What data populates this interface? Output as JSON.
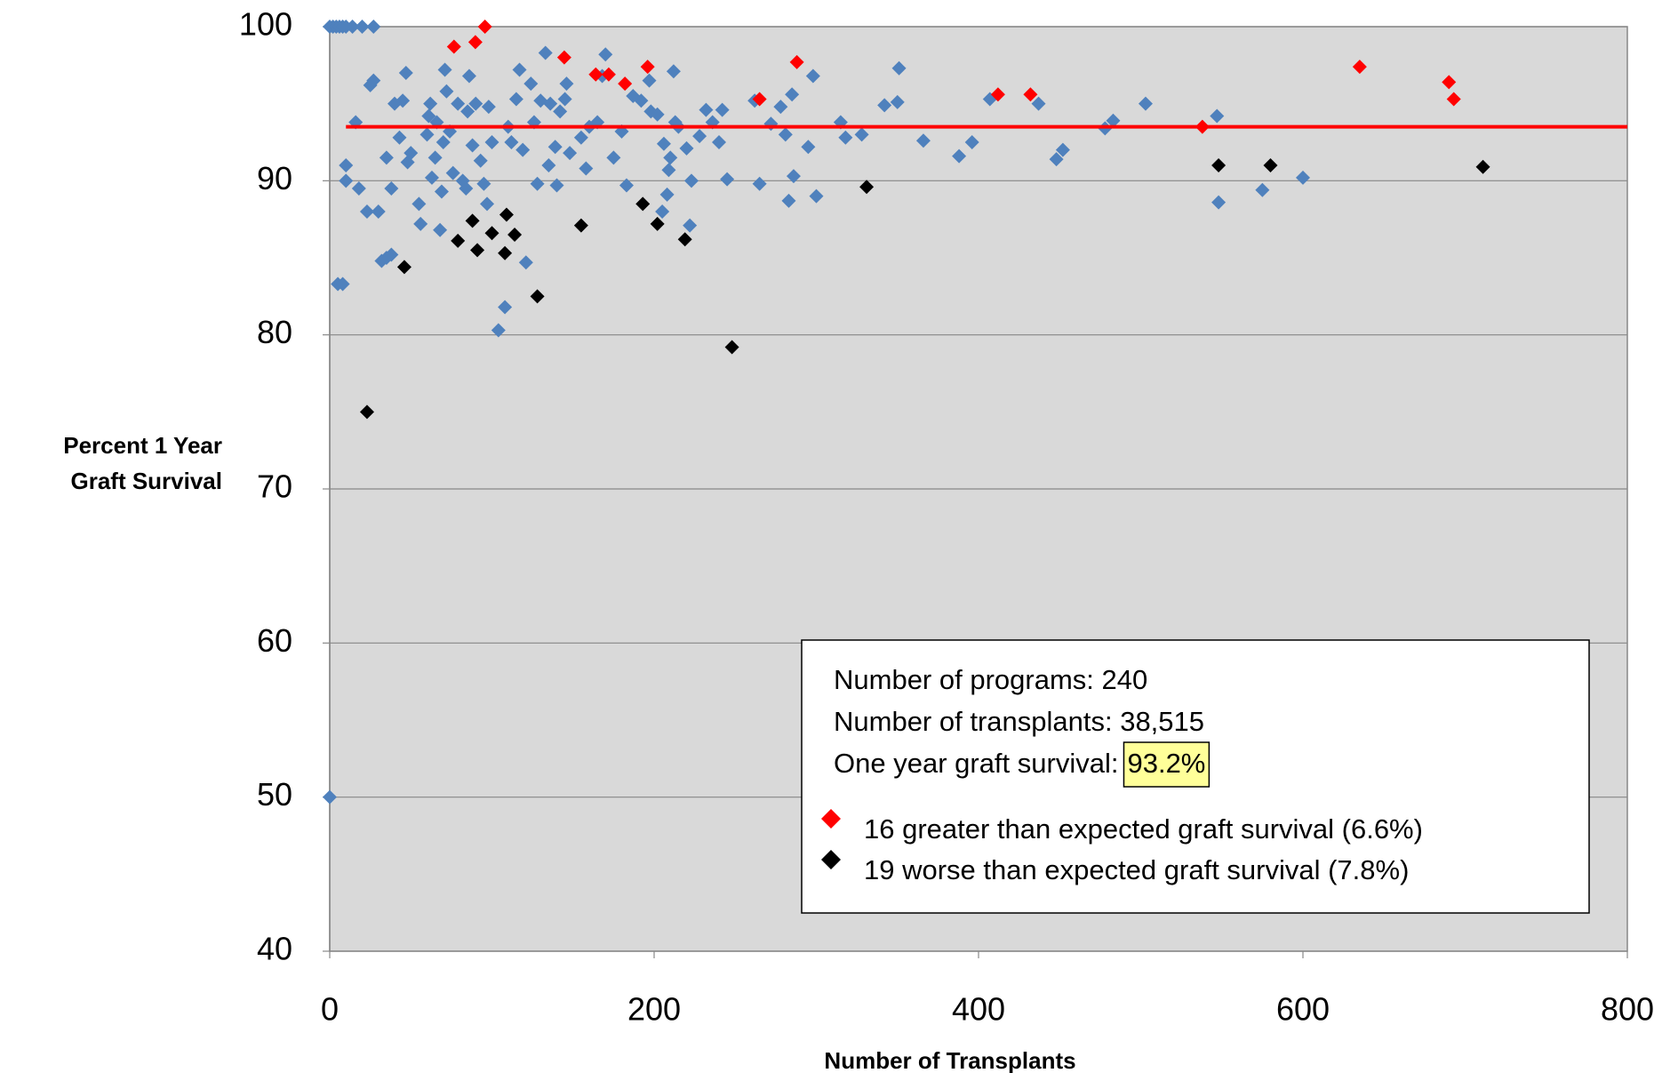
{
  "chart_data": {
    "type": "scatter",
    "xlabel": "Number of Transplants",
    "ylabel": [
      "Percent 1 Year",
      "Graft Survival"
    ],
    "xlim": [
      0,
      800
    ],
    "xticks": [
      0,
      200,
      400,
      600,
      800
    ],
    "ylim": [
      40,
      100
    ],
    "yticks": [
      40,
      50,
      60,
      70,
      80,
      90,
      100
    ],
    "grid": true,
    "reference_line": {
      "value": 93.5,
      "x": [
        10,
        800
      ],
      "color": "#ff0000"
    },
    "annotation": {
      "lines": [
        "Number of programs: 240",
        "Number of transplants: 38,515",
        "One year graft survival:"
      ],
      "highlight": "93.2%"
    },
    "series": [
      {
        "color": "#4f81bd",
        "x": [
          0,
          2,
          4,
          6,
          8,
          10,
          14,
          20,
          27,
          0,
          5,
          8,
          10,
          10,
          16,
          18,
          23,
          25,
          27,
          30,
          32,
          35,
          35,
          38,
          38,
          40,
          43,
          45,
          47,
          48,
          50,
          55,
          56,
          60,
          61,
          62,
          63,
          65,
          66,
          68,
          69,
          70,
          71,
          72,
          74,
          76,
          79,
          82,
          84,
          85,
          86,
          88,
          90,
          93,
          95,
          97,
          98,
          100,
          104,
          108,
          110,
          112,
          115,
          117,
          119,
          121,
          124,
          126,
          128,
          130,
          133,
          135,
          136,
          139,
          140,
          142,
          145,
          146,
          148,
          155,
          158,
          160,
          165,
          168,
          170,
          175,
          180,
          183,
          187,
          192,
          197,
          198,
          202,
          205,
          206,
          208,
          209,
          210,
          212,
          213,
          215,
          220,
          222,
          223,
          228,
          232,
          236,
          240,
          242,
          245,
          262,
          265,
          272,
          278,
          281,
          283,
          286,
          285,
          295,
          298,
          300,
          315,
          318,
          328,
          342,
          350,
          351,
          366,
          388,
          396,
          407,
          437,
          448,
          452,
          478,
          483,
          503,
          547,
          548,
          575,
          600
        ],
        "values": [
          100,
          100,
          100,
          100,
          100,
          100,
          100,
          100,
          100,
          50,
          83.3,
          83.3,
          91,
          90,
          93.8,
          89.5,
          88,
          96.2,
          96.5,
          88,
          84.8,
          85,
          91.5,
          85.2,
          89.5,
          95,
          92.8,
          95.2,
          97,
          91.2,
          91.8,
          88.5,
          87.2,
          93,
          94.2,
          95,
          90.2,
          91.5,
          93.8,
          86.8,
          89.3,
          92.5,
          97.2,
          95.8,
          93.2,
          90.5,
          95,
          90,
          89.5,
          94.5,
          96.8,
          92.3,
          95,
          91.3,
          89.8,
          88.5,
          94.8,
          92.5,
          80.3,
          81.8,
          93.5,
          92.5,
          95.3,
          97.2,
          92,
          84.7,
          96.3,
          93.8,
          89.8,
          95.2,
          98.3,
          91,
          95,
          92.2,
          89.7,
          94.5,
          95.3,
          96.3,
          91.8,
          92.8,
          90.8,
          93.5,
          93.8,
          96.8,
          98.2,
          91.5,
          93.2,
          89.7,
          95.5,
          95.2,
          96.5,
          94.5,
          94.3,
          88,
          92.4,
          89.1,
          90.7,
          91.5,
          97.1,
          93.8,
          93.5,
          92.1,
          87.1,
          90,
          92.9,
          94.6,
          93.8,
          92.5,
          94.6,
          90.1,
          95.2,
          89.8,
          93.7,
          94.8,
          93,
          88.7,
          90.3,
          95.6,
          92.2,
          96.8,
          89,
          93.8,
          92.8,
          93,
          94.9,
          95.1,
          97.3,
          92.6,
          91.6,
          92.5,
          95.3,
          95,
          91.4,
          92,
          93.4,
          93.9,
          95,
          94.2,
          88.6,
          89.4,
          90.2
        ]
      },
      {
        "name": "16 greater than expected graft survival  (6.6%)",
        "color": "#ff0000",
        "x": [
          76.6,
          89.8,
          95.7,
          144.6,
          164,
          172,
          196,
          265,
          288,
          412,
          432,
          538,
          635,
          690,
          693,
          182
        ],
        "values": [
          98.7,
          99,
          100,
          98,
          96.9,
          96.9,
          97.4,
          95.3,
          97.7,
          95.6,
          95.6,
          93.5,
          97.4,
          96.4,
          95.3,
          96.3
        ]
      },
      {
        "name": "19 worse than expected graft survival  (7.8%)",
        "color": "#000000",
        "x": [
          23,
          46,
          79,
          88,
          91,
          100,
          108,
          109,
          114,
          128,
          155,
          193,
          202,
          219,
          248,
          331,
          548,
          580,
          711
        ],
        "values": [
          75,
          84.4,
          86.1,
          87.4,
          85.5,
          86.6,
          85.3,
          87.8,
          86.5,
          82.5,
          87.1,
          88.5,
          87.2,
          86.2,
          79.2,
          89.6,
          91,
          91,
          90.9
        ]
      }
    ]
  }
}
